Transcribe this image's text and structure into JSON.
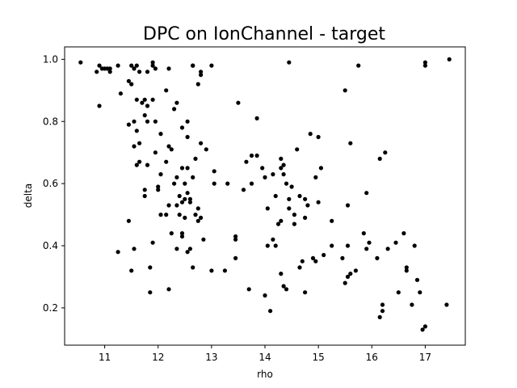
{
  "chart_data": {
    "type": "scatter",
    "title": "DPC on IonChannel - target",
    "xlabel": "rho",
    "ylabel": "delta",
    "xlim": [
      10.25,
      17.75
    ],
    "ylim": [
      0.08,
      1.04
    ],
    "xticks": [
      "11",
      "12",
      "13",
      "14",
      "15",
      "16",
      "17"
    ],
    "yticks": [
      "0.2",
      "0.4",
      "0.6",
      "0.8",
      "1.0"
    ],
    "grid": false,
    "legend": "none",
    "marker_color": "#000000",
    "series": [
      {
        "points": [
          [
            10.55,
            0.99
          ],
          [
            10.85,
            0.96
          ],
          [
            10.9,
            0.98
          ],
          [
            10.95,
            0.97
          ],
          [
            11.0,
            0.97
          ],
          [
            11.05,
            0.97
          ],
          [
            11.1,
            0.97
          ],
          [
            11.1,
            0.96
          ],
          [
            11.25,
            0.98
          ],
          [
            11.5,
            0.98
          ],
          [
            11.55,
            0.97
          ],
          [
            11.6,
            0.98
          ],
          [
            11.65,
            0.96
          ],
          [
            11.8,
            0.96
          ],
          [
            11.9,
            0.99
          ],
          [
            11.9,
            0.98
          ],
          [
            11.95,
            0.97
          ],
          [
            12.2,
            0.97
          ],
          [
            12.65,
            0.98
          ],
          [
            12.65,
            0.98
          ],
          [
            12.8,
            0.96
          ],
          [
            12.8,
            0.95
          ],
          [
            13.0,
            0.98
          ],
          [
            14.45,
            0.99
          ],
          [
            15.75,
            0.98
          ],
          [
            17.0,
            0.99
          ],
          [
            17.0,
            0.98
          ],
          [
            17.45,
            1.0
          ],
          [
            10.9,
            0.85
          ],
          [
            11.3,
            0.89
          ],
          [
            11.45,
            0.93
          ],
          [
            11.5,
            0.92
          ],
          [
            11.6,
            0.87
          ],
          [
            11.7,
            0.86
          ],
          [
            11.75,
            0.87
          ],
          [
            11.8,
            0.85
          ],
          [
            11.75,
            0.82
          ],
          [
            11.9,
            0.87
          ],
          [
            12.15,
            0.9
          ],
          [
            12.3,
            0.84
          ],
          [
            12.35,
            0.86
          ],
          [
            12.45,
            0.78
          ],
          [
            12.55,
            0.75
          ],
          [
            12.55,
            0.8
          ],
          [
            12.75,
            0.92
          ],
          [
            11.45,
            0.79
          ],
          [
            11.55,
            0.8
          ],
          [
            11.6,
            0.77
          ],
          [
            11.65,
            0.73
          ],
          [
            11.8,
            0.8
          ],
          [
            11.95,
            0.8
          ],
          [
            12.05,
            0.76
          ],
          [
            12.7,
            0.68
          ],
          [
            12.8,
            0.73
          ],
          [
            12.9,
            0.71
          ],
          [
            13.05,
            0.64
          ],
          [
            13.5,
            0.86
          ],
          [
            13.85,
            0.81
          ],
          [
            15.5,
            0.9
          ],
          [
            15.6,
            0.73
          ],
          [
            11.55,
            0.72
          ],
          [
            11.6,
            0.66
          ],
          [
            11.65,
            0.67
          ],
          [
            11.75,
            0.58
          ],
          [
            11.8,
            0.66
          ],
          [
            11.95,
            0.7
          ],
          [
            12.0,
            0.59
          ],
          [
            12.0,
            0.58
          ],
          [
            12.05,
            0.63
          ],
          [
            12.15,
            0.67
          ],
          [
            12.2,
            0.72
          ],
          [
            12.25,
            0.71
          ],
          [
            12.3,
            0.6
          ],
          [
            12.35,
            0.62
          ],
          [
            12.4,
            0.56
          ],
          [
            12.45,
            0.65
          ],
          [
            12.45,
            0.54
          ],
          [
            12.5,
            0.6
          ],
          [
            12.5,
            0.55
          ],
          [
            12.55,
            0.65
          ],
          [
            12.55,
            0.57
          ],
          [
            12.6,
            0.55
          ],
          [
            12.65,
            0.62
          ],
          [
            12.7,
            0.5
          ],
          [
            12.75,
            0.52
          ],
          [
            13.05,
            0.6
          ],
          [
            13.3,
            0.6
          ],
          [
            13.65,
            0.67
          ],
          [
            13.75,
            0.6
          ],
          [
            13.75,
            0.69
          ],
          [
            13.85,
            0.69
          ],
          [
            13.95,
            0.65
          ],
          [
            14.0,
            0.62
          ],
          [
            14.15,
            0.63
          ],
          [
            14.2,
            0.56
          ],
          [
            14.3,
            0.68
          ],
          [
            14.3,
            0.65
          ],
          [
            14.35,
            0.66
          ],
          [
            14.35,
            0.63
          ],
          [
            14.4,
            0.6
          ],
          [
            14.45,
            0.52
          ],
          [
            14.5,
            0.59
          ],
          [
            14.55,
            0.5
          ],
          [
            14.6,
            0.71
          ],
          [
            14.65,
            0.56
          ],
          [
            14.75,
            0.55
          ],
          [
            14.8,
            0.53
          ],
          [
            14.85,
            0.76
          ],
          [
            14.95,
            0.62
          ],
          [
            15.0,
            0.75
          ],
          [
            15.0,
            0.54
          ],
          [
            15.05,
            0.65
          ],
          [
            15.55,
            0.53
          ],
          [
            15.9,
            0.57
          ],
          [
            16.15,
            0.68
          ],
          [
            16.25,
            0.7
          ],
          [
            11.45,
            0.48
          ],
          [
            11.75,
            0.56
          ],
          [
            12.05,
            0.5
          ],
          [
            12.15,
            0.5
          ],
          [
            12.2,
            0.53
          ],
          [
            12.35,
            0.53
          ],
          [
            12.4,
            0.5
          ],
          [
            12.5,
            0.49
          ],
          [
            12.6,
            0.54
          ],
          [
            12.75,
            0.48
          ],
          [
            12.85,
            0.42
          ],
          [
            13.45,
            0.42
          ],
          [
            13.6,
            0.58
          ],
          [
            14.05,
            0.52
          ],
          [
            14.3,
            0.48
          ],
          [
            14.45,
            0.55
          ],
          [
            14.55,
            0.47
          ],
          [
            14.75,
            0.49
          ],
          [
            15.25,
            0.48
          ],
          [
            11.5,
            0.32
          ],
          [
            11.55,
            0.39
          ],
          [
            11.85,
            0.33
          ],
          [
            11.9,
            0.41
          ],
          [
            12.2,
            0.26
          ],
          [
            12.25,
            0.44
          ],
          [
            12.35,
            0.39
          ],
          [
            12.45,
            0.44
          ],
          [
            12.45,
            0.43
          ],
          [
            12.55,
            0.38
          ],
          [
            12.6,
            0.39
          ],
          [
            12.65,
            0.33
          ],
          [
            13.0,
            0.32
          ],
          [
            13.25,
            0.32
          ],
          [
            13.45,
            0.43
          ],
          [
            13.45,
            0.36
          ],
          [
            13.7,
            0.26
          ],
          [
            14.0,
            0.24
          ],
          [
            14.1,
            0.19
          ],
          [
            14.15,
            0.42
          ],
          [
            14.2,
            0.4
          ],
          [
            14.3,
            0.31
          ],
          [
            14.35,
            0.27
          ],
          [
            14.4,
            0.26
          ],
          [
            14.65,
            0.33
          ],
          [
            14.7,
            0.35
          ],
          [
            14.75,
            0.25
          ],
          [
            14.9,
            0.36
          ],
          [
            14.95,
            0.35
          ],
          [
            15.1,
            0.37
          ],
          [
            15.25,
            0.4
          ],
          [
            15.45,
            0.36
          ],
          [
            15.5,
            0.28
          ],
          [
            15.55,
            0.3
          ],
          [
            15.6,
            0.31
          ],
          [
            15.7,
            0.32
          ],
          [
            15.85,
            0.44
          ],
          [
            15.9,
            0.39
          ],
          [
            15.95,
            0.41
          ],
          [
            16.1,
            0.36
          ],
          [
            16.2,
            0.21
          ],
          [
            16.2,
            0.19
          ],
          [
            16.3,
            0.39
          ],
          [
            16.45,
            0.41
          ],
          [
            16.5,
            0.25
          ],
          [
            16.6,
            0.44
          ],
          [
            16.65,
            0.33
          ],
          [
            16.65,
            0.32
          ],
          [
            16.75,
            0.21
          ],
          [
            16.8,
            0.4
          ],
          [
            16.85,
            0.29
          ],
          [
            16.9,
            0.25
          ],
          [
            16.95,
            0.13
          ],
          [
            17.0,
            0.14
          ],
          [
            17.4,
            0.21
          ],
          [
            11.25,
            0.38
          ],
          [
            11.85,
            0.25
          ],
          [
            12.8,
            0.49
          ],
          [
            14.25,
            0.47
          ],
          [
            15.55,
            0.4
          ],
          [
            16.15,
            0.17
          ],
          [
            14.05,
            0.4
          ]
        ]
      }
    ]
  }
}
